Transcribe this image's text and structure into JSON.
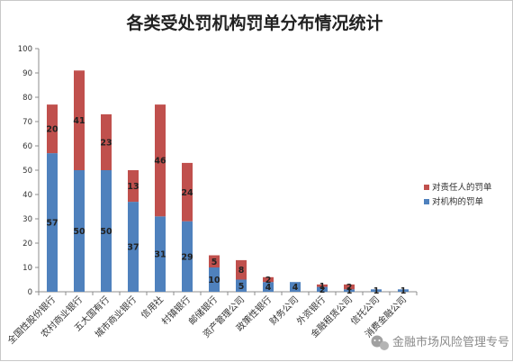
{
  "chart_data": {
    "type": "bar",
    "stacked": true,
    "title": "各类受处罚机构罚单分布情况统计",
    "categories": [
      "全国性股份银行",
      "农村商业银行",
      "五大国有行",
      "城市商业银行",
      "信用社",
      "村镇银行",
      "邮储银行",
      "资产管理公司",
      "政策性银行",
      "财务公司",
      "外资银行",
      "金融租赁公司",
      "信托公司",
      "消费金融公司"
    ],
    "series": [
      {
        "name": "对机构的罚单",
        "color": "#4f81bd",
        "values": [
          57,
          50,
          50,
          37,
          31,
          29,
          10,
          5,
          4,
          4,
          2,
          1,
          1,
          1
        ]
      },
      {
        "name": "对责任人的罚单",
        "color": "#c0504d",
        "values": [
          20,
          41,
          23,
          13,
          46,
          24,
          5,
          8,
          2,
          0,
          1,
          2,
          0,
          0
        ]
      }
    ],
    "data_labels": [
      {
        "series": 0,
        "index": 0,
        "text": "57"
      },
      {
        "series": 1,
        "index": 0,
        "text": "20"
      },
      {
        "series": 0,
        "index": 1,
        "text": "50"
      },
      {
        "series": 1,
        "index": 1,
        "text": "41"
      },
      {
        "series": 0,
        "index": 2,
        "text": "50"
      },
      {
        "series": 1,
        "index": 2,
        "text": "23"
      },
      {
        "series": 0,
        "index": 3,
        "text": "37"
      },
      {
        "series": 1,
        "index": 3,
        "text": "13"
      },
      {
        "series": 0,
        "index": 4,
        "text": "31"
      },
      {
        "series": 1,
        "index": 4,
        "text": "46"
      },
      {
        "series": 0,
        "index": 5,
        "text": "29"
      },
      {
        "series": 1,
        "index": 5,
        "text": "24"
      },
      {
        "series": 0,
        "index": 6,
        "text": "10"
      },
      {
        "series": 1,
        "index": 6,
        "text": "5"
      },
      {
        "series": 0,
        "index": 7,
        "text": "5"
      },
      {
        "series": 1,
        "index": 7,
        "text": "8"
      },
      {
        "series": 0,
        "index": 8,
        "text": "4"
      },
      {
        "series": 1,
        "index": 8,
        "text": "2"
      },
      {
        "series": 0,
        "index": 9,
        "text": "4"
      },
      {
        "series": 0,
        "index": 10,
        "text": "2"
      },
      {
        "series": 1,
        "index": 10,
        "text": "1"
      },
      {
        "series": 0,
        "index": 11,
        "text": "1"
      },
      {
        "series": 1,
        "index": 11,
        "text": "2"
      },
      {
        "series": 0,
        "index": 12,
        "text": "1"
      },
      {
        "series": 0,
        "index": 13,
        "text": "1"
      }
    ],
    "ylim": [
      0,
      100
    ],
    "yticks": [
      0,
      10,
      20,
      30,
      40,
      50,
      60,
      70,
      80,
      90,
      100
    ],
    "grid": false,
    "legend_position": "right",
    "legend_order": [
      1,
      0
    ]
  },
  "watermark": {
    "text": "金融市场风险管理专号",
    "icon": "wechat-icon"
  }
}
